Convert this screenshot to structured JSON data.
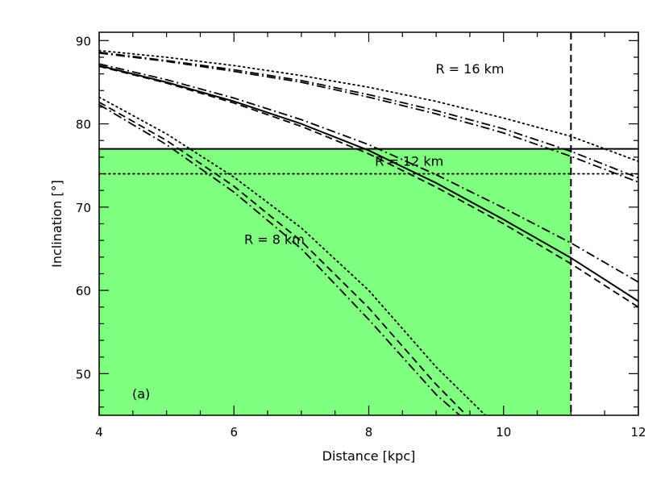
{
  "chart_data": {
    "type": "line",
    "title": "",
    "xlabel": "Distance [kpc]",
    "ylabel": "Inclination [°]",
    "xlim": [
      4,
      12
    ],
    "ylim": [
      45,
      91
    ],
    "xticks": [
      4,
      6,
      8,
      10,
      12
    ],
    "yticks": [
      50,
      60,
      70,
      80,
      90
    ],
    "xtick_labels": [
      "4",
      "6",
      "8",
      "10",
      "12"
    ],
    "ytick_labels": [
      "50",
      "60",
      "70",
      "80",
      "90"
    ],
    "grid": false,
    "legend": "none",
    "panel_label": "(a)",
    "annotations": [
      {
        "text": "R = 16 km",
        "x": 9.5,
        "y": 86.5
      },
      {
        "text": "R = 12 km",
        "x": 8.6,
        "y": 75.4
      },
      {
        "text": "R = 8 km",
        "x": 6.6,
        "y": 66.0
      }
    ],
    "shaded_region": {
      "x": [
        4,
        11
      ],
      "y": [
        45,
        77
      ],
      "color": "#80ff80"
    },
    "horizontal_lines": [
      {
        "y": 77,
        "style": "solid"
      },
      {
        "y": 74,
        "style": "dotted"
      }
    ],
    "vertical_lines": [
      {
        "x": 11,
        "style": "dashed"
      }
    ],
    "series": [
      {
        "group": "R = 16 km",
        "style": "dotted",
        "x": [
          4,
          5,
          6,
          7,
          8,
          9,
          10,
          11,
          12
        ],
        "y": [
          88.8,
          88.0,
          87.0,
          85.8,
          84.4,
          82.7,
          80.7,
          78.5,
          75.5
        ]
      },
      {
        "group": "R = 16 km",
        "style": "dashdot",
        "x": [
          4,
          5,
          6,
          7,
          8,
          9,
          10,
          11,
          12
        ],
        "y": [
          88.6,
          87.6,
          86.5,
          85.2,
          83.5,
          81.6,
          79.4,
          76.7,
          73.5
        ]
      },
      {
        "group": "R = 16 km",
        "style": "dashdot",
        "x": [
          4,
          5,
          6,
          7,
          8,
          9,
          10,
          11,
          12
        ],
        "y": [
          88.5,
          87.5,
          86.3,
          85.0,
          83.2,
          81.2,
          78.9,
          76.1,
          73.0
        ]
      },
      {
        "group": "R = 12 km",
        "style": "solid",
        "x": [
          4,
          5,
          6,
          7,
          8,
          9,
          10,
          11,
          12
        ],
        "y": [
          87.0,
          85.0,
          82.7,
          80.0,
          76.8,
          72.9,
          68.5,
          63.9,
          58.7
        ]
      },
      {
        "group": "R = 12 km",
        "style": "dashdot",
        "x": [
          4,
          5,
          6,
          7,
          8,
          9,
          10,
          11,
          12
        ],
        "y": [
          87.2,
          85.3,
          83.1,
          80.5,
          77.5,
          73.9,
          69.9,
          65.7,
          61.0
        ]
      },
      {
        "group": "R = 12 km",
        "style": "dashed",
        "x": [
          4,
          5,
          6,
          7,
          8,
          9,
          10,
          11,
          12
        ],
        "y": [
          86.9,
          84.9,
          82.5,
          79.7,
          76.4,
          72.4,
          68.0,
          63.2,
          58.0
        ]
      },
      {
        "group": "R = 8 km",
        "style": "dotted",
        "x": [
          4,
          5,
          6,
          7,
          8,
          9,
          9.73
        ],
        "y": [
          83.2,
          78.8,
          73.6,
          67.5,
          60.0,
          50.8,
          45.0
        ]
      },
      {
        "group": "R = 8 km",
        "style": "dashed",
        "x": [
          4,
          5,
          6,
          7,
          8,
          9,
          9.45
        ],
        "y": [
          82.6,
          78.0,
          72.5,
          65.9,
          57.9,
          48.7,
          45.0
        ]
      },
      {
        "group": "R = 8 km",
        "style": "dashdot",
        "x": [
          4,
          5,
          6,
          7,
          8,
          9,
          9.35
        ],
        "y": [
          82.3,
          77.5,
          71.8,
          65.0,
          56.5,
          47.5,
          45.0
        ]
      }
    ]
  }
}
